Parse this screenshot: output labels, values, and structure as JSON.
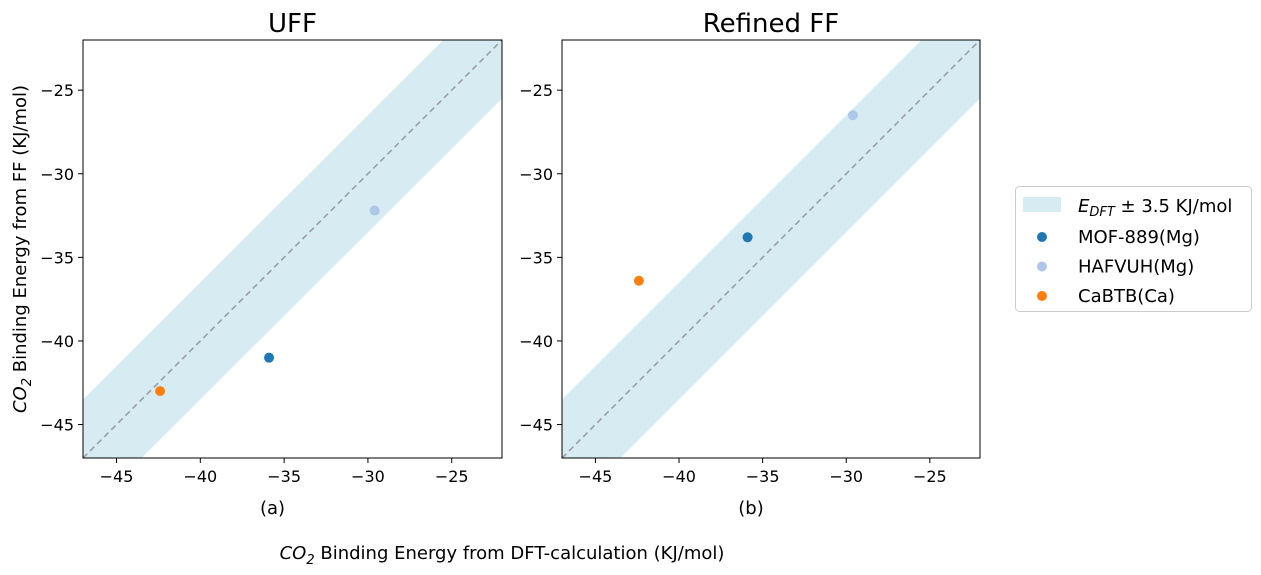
{
  "figure": {
    "ylabel_prefix": "CO",
    "ylabel_sub": "2",
    "ylabel_rest": " Binding Energy from FF (KJ/mol)",
    "xlabel_prefix": "CO",
    "xlabel_sub": "2",
    "xlabel_rest": " Binding Energy from DFT-calculation (KJ/mol)"
  },
  "legend": {
    "band_label_main": "E",
    "band_label_sub": "DFT",
    "band_label_rest": " ± 3.5 KJ/mol",
    "band_color": "#add8e6"
  },
  "chart_data": [
    {
      "type": "scatter",
      "title": "UFF",
      "panel_label": "(a)",
      "xlim": [
        -47,
        -22
      ],
      "ylim": [
        -47,
        -22
      ],
      "xticks": [
        -45,
        -40,
        -35,
        -30,
        -25
      ],
      "yticks": [
        -45,
        -40,
        -35,
        -30,
        -25
      ],
      "xtick_labels": [
        "−45",
        "−40",
        "−35",
        "−30",
        "−25"
      ],
      "ytick_labels": [
        "−45",
        "−40",
        "−35",
        "−30",
        "−25"
      ],
      "band_halfwidth": 3.5,
      "reference_line": "y = x",
      "series": [
        {
          "name": "MOF-889(Mg)",
          "color": "#1f77b4",
          "x": [
            -35.9
          ],
          "y": [
            -41.0
          ]
        },
        {
          "name": "HAFVUH(Mg)",
          "color": "#aec7e8",
          "x": [
            -29.6
          ],
          "y": [
            -32.2
          ]
        },
        {
          "name": "CaBTB(Ca)",
          "color": "#ff7f0e",
          "x": [
            -42.4
          ],
          "y": [
            -43.0
          ]
        }
      ]
    },
    {
      "type": "scatter",
      "title": "Refined FF",
      "panel_label": "(b)",
      "xlim": [
        -47,
        -22
      ],
      "ylim": [
        -47,
        -22
      ],
      "xticks": [
        -45,
        -40,
        -35,
        -30,
        -25
      ],
      "yticks": [
        -45,
        -40,
        -35,
        -30,
        -25
      ],
      "xtick_labels": [
        "−45",
        "−40",
        "−35",
        "−30",
        "−25"
      ],
      "ytick_labels": [
        "−45",
        "−40",
        "−35",
        "−30",
        "−25"
      ],
      "band_halfwidth": 3.5,
      "reference_line": "y = x",
      "series": [
        {
          "name": "MOF-889(Mg)",
          "color": "#1f77b4",
          "x": [
            -35.9
          ],
          "y": [
            -33.8
          ]
        },
        {
          "name": "HAFVUH(Mg)",
          "color": "#aec7e8",
          "x": [
            -29.6
          ],
          "y": [
            -26.5
          ]
        },
        {
          "name": "CaBTB(Ca)",
          "color": "#ff7f0e",
          "x": [
            -42.4
          ],
          "y": [
            -36.4
          ]
        }
      ]
    }
  ]
}
